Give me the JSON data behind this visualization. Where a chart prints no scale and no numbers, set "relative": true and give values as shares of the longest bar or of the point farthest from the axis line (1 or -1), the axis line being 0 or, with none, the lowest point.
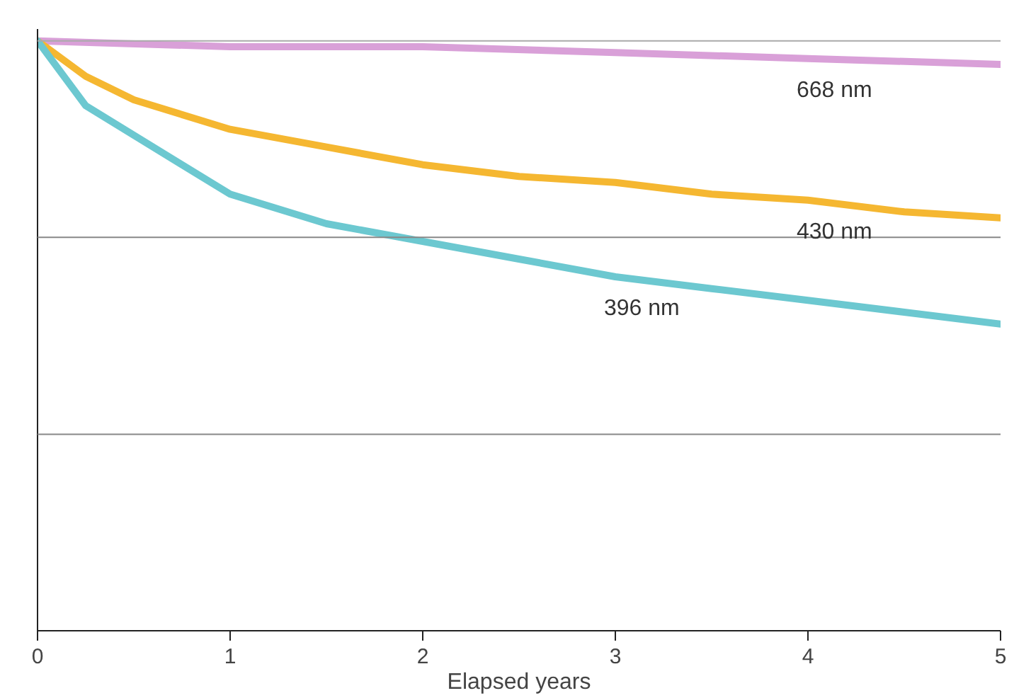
{
  "chart_data": {
    "type": "line",
    "xlabel": "Elapsed years",
    "relative": true,
    "xlim": [
      0,
      5
    ],
    "xticks": [
      0,
      1,
      2,
      3,
      4,
      5
    ],
    "marker": "none",
    "line_style": "solid",
    "ref_lines": [
      {
        "axis": "y",
        "value": 1,
        "color": "#aaaaaa"
      },
      {
        "axis": "y",
        "value": 0.667,
        "color": "#888888"
      },
      {
        "axis": "y",
        "value": 0.333,
        "color": "#888888"
      }
    ],
    "series": [
      {
        "name": "668 nm",
        "color": "#d9a0d8",
        "x": [
          0,
          1,
          2,
          3,
          4,
          5
        ],
        "values": [
          1,
          0.99,
          0.99,
          0.98,
          0.97,
          0.96
        ]
      },
      {
        "name": "430 nm",
        "color": "#f5b731",
        "x": [
          0,
          0.25,
          0.5,
          1,
          1.5,
          2,
          2.5,
          3,
          3.5,
          4,
          4.5,
          5
        ],
        "values": [
          1,
          0.94,
          0.9,
          0.85,
          0.82,
          0.79,
          0.77,
          0.76,
          0.74,
          0.73,
          0.71,
          0.7
        ]
      },
      {
        "name": "396 nm",
        "color": "#6cc8d0",
        "x": [
          0,
          0.25,
          0.5,
          1,
          1.5,
          2,
          2.5,
          3,
          3.5,
          4,
          4.5,
          5
        ],
        "values": [
          1,
          0.89,
          0.84,
          0.74,
          0.69,
          0.66,
          0.63,
          0.6,
          0.58,
          0.56,
          0.54,
          0.52
        ]
      }
    ]
  }
}
